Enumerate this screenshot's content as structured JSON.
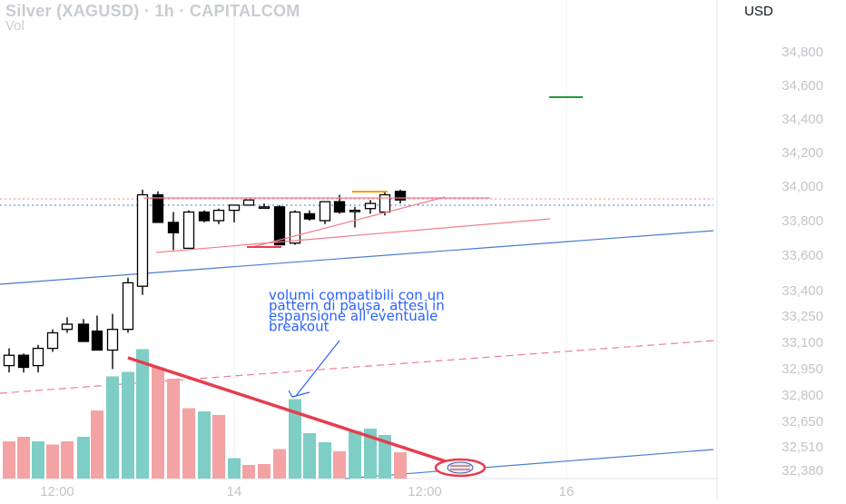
{
  "header": {
    "title": "Silver (XAGUSD) · 1h · CAPITALCOM",
    "vol_label": "Vol",
    "currency": "USD"
  },
  "chart_data": {
    "type": "candlestick",
    "title": "Silver (XAGUSD) · 1h · CAPITALCOM",
    "ylabel": "USD",
    "ylim": [
      32330,
      35030
    ],
    "grid": true,
    "y_ticks": [
      "34,800",
      "34,600",
      "34,400",
      "34,200",
      "34,000",
      "33,800",
      "33,600",
      "33,400",
      "33,250",
      "33,100",
      "32,950",
      "32,800",
      "32,650",
      "32,510",
      "32,380"
    ],
    "x_ticks": [
      "12:00",
      "14",
      "12:00",
      "16"
    ],
    "series": [
      {
        "candles": [
          {
            "open": 32960,
            "high": 33060,
            "low": 32920,
            "close": 33020
          },
          {
            "open": 33020,
            "high": 33030,
            "low": 32920,
            "close": 32950
          },
          {
            "open": 32960,
            "high": 33080,
            "low": 32920,
            "close": 33060
          },
          {
            "open": 33060,
            "high": 33170,
            "low": 33040,
            "close": 33150
          },
          {
            "open": 33170,
            "high": 33240,
            "low": 33150,
            "close": 33200
          },
          {
            "open": 33200,
            "high": 33230,
            "low": 33100,
            "close": 33100
          },
          {
            "open": 33160,
            "high": 33250,
            "low": 33050,
            "close": 33050
          },
          {
            "open": 33050,
            "high": 33260,
            "low": 32940,
            "close": 33170
          },
          {
            "open": 33170,
            "high": 33470,
            "low": 33150,
            "close": 33440
          },
          {
            "open": 33420,
            "high": 33980,
            "low": 33370,
            "close": 33950
          },
          {
            "open": 33950,
            "high": 33970,
            "low": 33790,
            "close": 33790
          },
          {
            "open": 33790,
            "high": 33850,
            "low": 33630,
            "close": 33730
          },
          {
            "open": 33640,
            "high": 33860,
            "low": 33640,
            "close": 33850
          },
          {
            "open": 33850,
            "high": 33860,
            "low": 33790,
            "close": 33800
          },
          {
            "open": 33800,
            "high": 33870,
            "low": 33780,
            "close": 33860
          },
          {
            "open": 33860,
            "high": 33890,
            "low": 33790,
            "close": 33890
          },
          {
            "open": 33890,
            "high": 33920,
            "low": 33890,
            "close": 33920
          },
          {
            "open": 33880,
            "high": 33900,
            "low": 33870,
            "close": 33880
          },
          {
            "open": 33880,
            "high": 33890,
            "low": 33660,
            "close": 33660
          },
          {
            "open": 33670,
            "high": 33860,
            "low": 33660,
            "close": 33850
          },
          {
            "open": 33840,
            "high": 33860,
            "low": 33800,
            "close": 33810
          },
          {
            "open": 33800,
            "high": 33910,
            "low": 33780,
            "close": 33910
          },
          {
            "open": 33910,
            "high": 33950,
            "low": 33840,
            "close": 33850
          },
          {
            "open": 33860,
            "high": 33880,
            "low": 33760,
            "close": 33860
          },
          {
            "open": 33870,
            "high": 33920,
            "low": 33840,
            "close": 33900
          },
          {
            "open": 33850,
            "high": 33970,
            "low": 33830,
            "close": 33950
          },
          {
            "open": 33970,
            "high": 33980,
            "low": 33900,
            "close": 33920
          }
        ],
        "volume": [
          {
            "value": 82,
            "color": "red"
          },
          {
            "value": 92,
            "color": "red"
          },
          {
            "value": 82,
            "color": "green"
          },
          {
            "value": 75,
            "color": "red"
          },
          {
            "value": 82,
            "color": "red"
          },
          {
            "value": 92,
            "color": "green"
          },
          {
            "value": 150,
            "color": "red"
          },
          {
            "value": 225,
            "color": "green"
          },
          {
            "value": 235,
            "color": "green"
          },
          {
            "value": 285,
            "color": "green"
          },
          {
            "value": 245,
            "color": "red"
          },
          {
            "value": 220,
            "color": "red"
          },
          {
            "value": 155,
            "color": "red"
          },
          {
            "value": 148,
            "color": "green"
          },
          {
            "value": 140,
            "color": "red"
          },
          {
            "value": 45,
            "color": "green"
          },
          {
            "value": 30,
            "color": "red"
          },
          {
            "value": 32,
            "color": "red"
          },
          {
            "value": 65,
            "color": "red"
          },
          {
            "value": 175,
            "color": "green"
          },
          {
            "value": 100,
            "color": "green"
          },
          {
            "value": 80,
            "color": "green"
          },
          {
            "value": 60,
            "color": "red"
          },
          {
            "value": 105,
            "color": "green"
          },
          {
            "value": 110,
            "color": "green"
          },
          {
            "value": 96,
            "color": "green"
          },
          {
            "value": 58,
            "color": "red"
          }
        ]
      }
    ],
    "annotations": {
      "note_lines": [
        "volumi compatibili con un",
        "pattern di pausa, attesi in",
        "espansione all'eventuale",
        "breakout"
      ]
    }
  },
  "colors": {
    "up": "#000000",
    "down": "#000000",
    "vol_green": "#7ecec6",
    "vol_red": "#f3a3a3",
    "red_line": "#e53e4f",
    "thin_red": "#f07e8e",
    "blue_line": "#4a7bd0",
    "green_mark": "#1f9a3a",
    "orange_mark": "#ff9800",
    "grid": "#eef0f3"
  }
}
